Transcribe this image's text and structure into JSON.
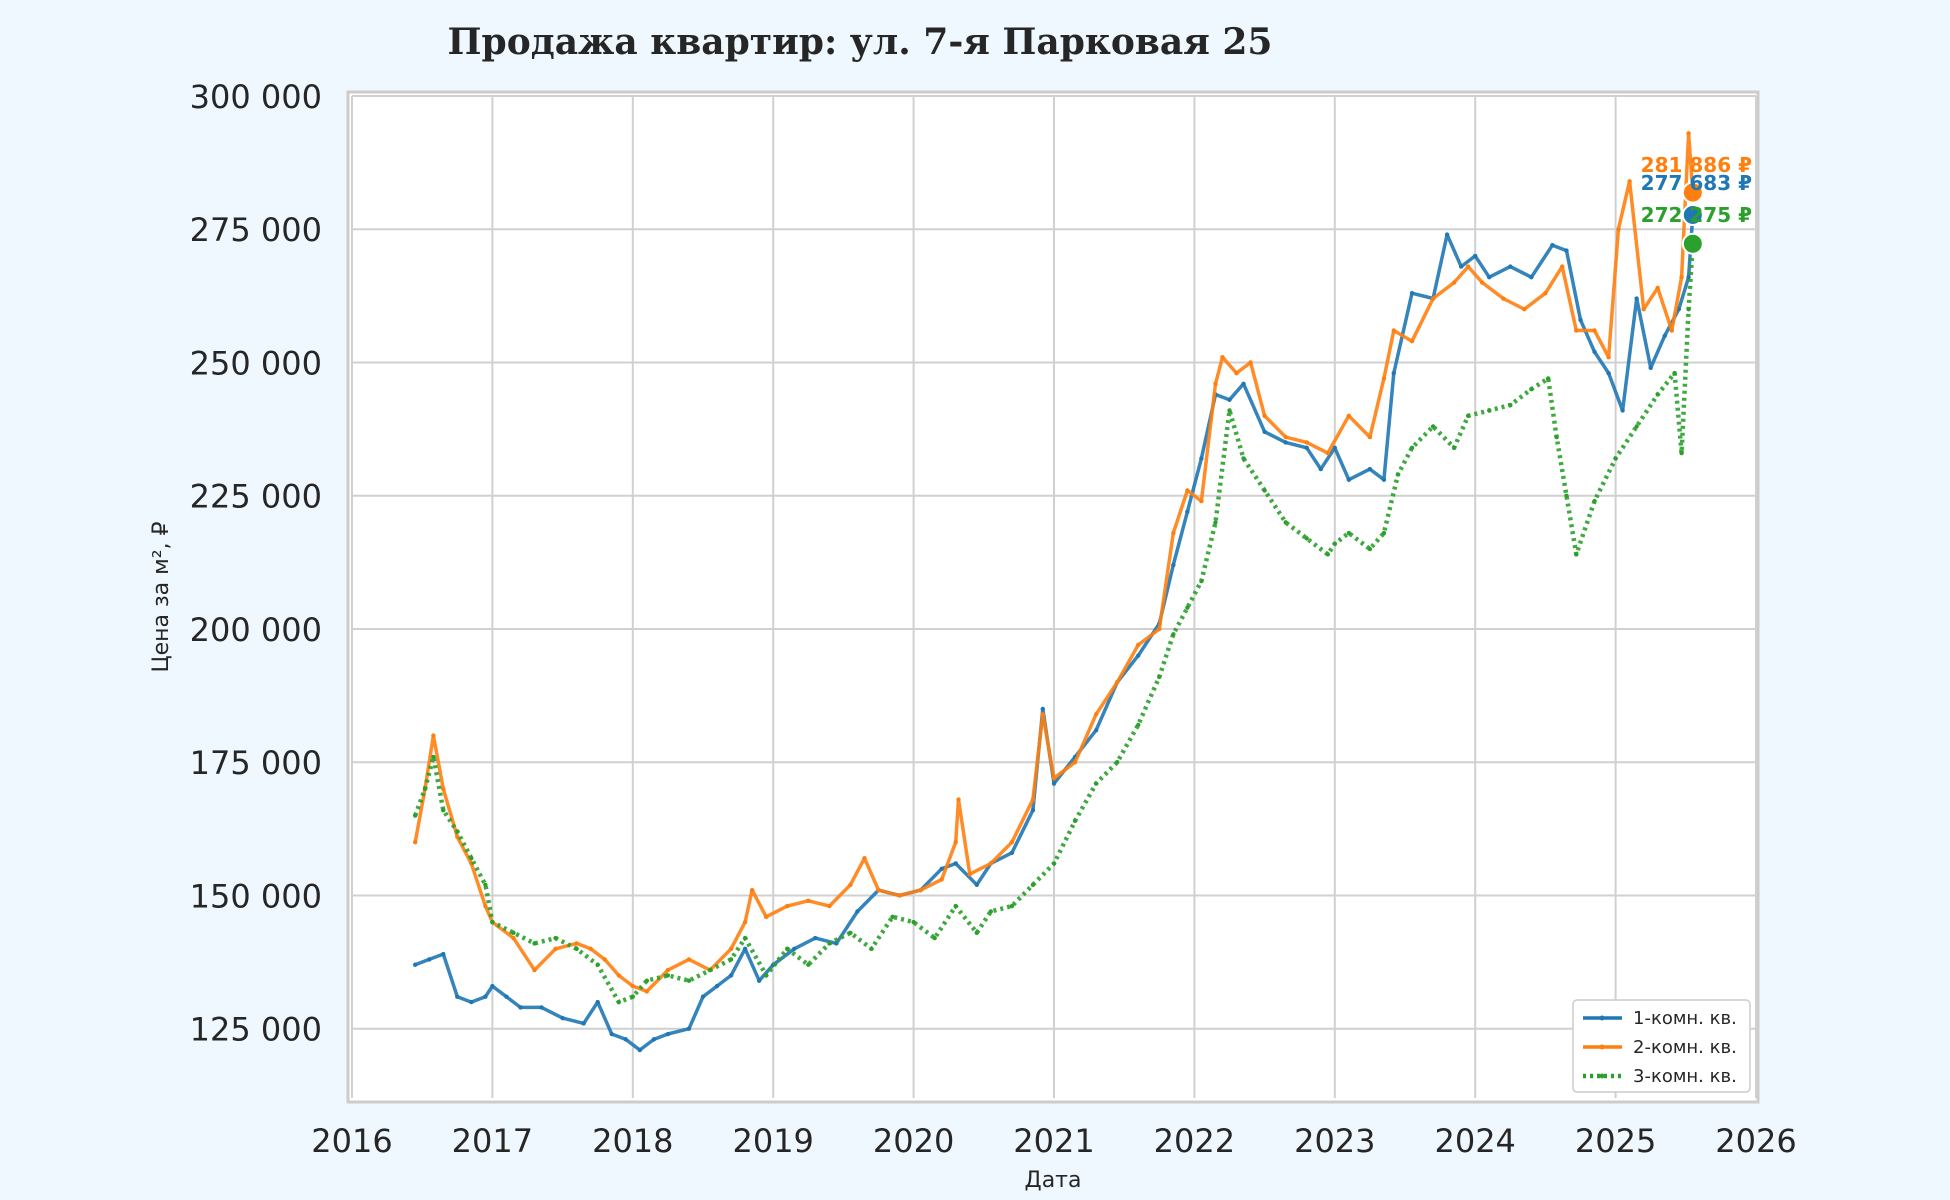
{
  "chart_data": {
    "type": "line",
    "title": "Продажа квартир: ул. 7-я Парковая 25",
    "xlabel": "Дата",
    "ylabel": "Цена за м², ₽",
    "xlim": [
      2016.0,
      2026.0
    ],
    "ylim": [
      112000,
      300000
    ],
    "x_ticks": [
      2016,
      2017,
      2018,
      2019,
      2020,
      2021,
      2022,
      2023,
      2024,
      2025,
      2026
    ],
    "x_tick_labels": [
      "2016",
      "2017",
      "2018",
      "2019",
      "2020",
      "2021",
      "2022",
      "2023",
      "2024",
      "2025",
      "2026"
    ],
    "y_ticks": [
      125000,
      150000,
      175000,
      200000,
      225000,
      250000,
      275000,
      300000
    ],
    "y_tick_labels": [
      "125 000",
      "150 000",
      "175 000",
      "200 000",
      "225 000",
      "250 000",
      "275 000",
      "300 000"
    ],
    "grid": true,
    "legend_position": "bottom-right",
    "series": [
      {
        "name": "1-комн. кв.",
        "color": "#1f77b4",
        "style": "solid",
        "x": [
          2016.45,
          2016.55,
          2016.65,
          2016.75,
          2016.85,
          2016.95,
          2017.0,
          2017.1,
          2017.2,
          2017.35,
          2017.5,
          2017.65,
          2017.75,
          2017.85,
          2017.95,
          2018.05,
          2018.15,
          2018.25,
          2018.4,
          2018.5,
          2018.6,
          2018.7,
          2018.8,
          2018.9,
          2019.0,
          2019.15,
          2019.3,
          2019.45,
          2019.6,
          2019.75,
          2019.9,
          2020.05,
          2020.2,
          2020.3,
          2020.45,
          2020.55,
          2020.7,
          2020.85,
          2020.92,
          2021.0,
          2021.15,
          2021.3,
          2021.45,
          2021.6,
          2021.75,
          2021.85,
          2021.95,
          2022.05,
          2022.15,
          2022.25,
          2022.35,
          2022.5,
          2022.65,
          2022.8,
          2022.9,
          2023.0,
          2023.1,
          2023.25,
          2023.35,
          2023.42,
          2023.55,
          2023.7,
          2023.8,
          2023.9,
          2024.0,
          2024.1,
          2024.25,
          2024.4,
          2024.55,
          2024.65,
          2024.75,
          2024.85,
          2024.95,
          2025.05,
          2025.15,
          2025.25,
          2025.35,
          2025.45,
          2025.52,
          2025.55
        ],
        "y": [
          137000,
          138000,
          139000,
          131000,
          130000,
          131000,
          133000,
          131000,
          129000,
          129000,
          127000,
          126000,
          130000,
          124000,
          123000,
          121000,
          123000,
          124000,
          125000,
          131000,
          133000,
          135000,
          140000,
          134000,
          137000,
          140000,
          142000,
          141000,
          147000,
          151000,
          150000,
          151000,
          155000,
          156000,
          152000,
          156000,
          158000,
          166000,
          185000,
          171000,
          176000,
          181000,
          190000,
          195000,
          201000,
          212000,
          222000,
          232000,
          244000,
          243000,
          246000,
          237000,
          235000,
          234000,
          230000,
          234000,
          228000,
          230000,
          228000,
          248000,
          263000,
          262000,
          274000,
          268000,
          270000,
          266000,
          268000,
          266000,
          272000,
          271000,
          258000,
          252000,
          248000,
          241000,
          262000,
          249000,
          255000,
          260000,
          266000,
          277683
        ]
      },
      {
        "name": "2-комн. кв.",
        "color": "#ff7f0e",
        "style": "solid",
        "x": [
          2016.45,
          2016.52,
          2016.58,
          2016.65,
          2016.75,
          2016.85,
          2016.95,
          2017.0,
          2017.15,
          2017.3,
          2017.45,
          2017.6,
          2017.7,
          2017.8,
          2017.9,
          2018.0,
          2018.1,
          2018.25,
          2018.4,
          2018.55,
          2018.7,
          2018.8,
          2018.85,
          2018.95,
          2019.1,
          2019.25,
          2019.4,
          2019.55,
          2019.65,
          2019.75,
          2019.9,
          2020.05,
          2020.2,
          2020.3,
          2020.32,
          2020.4,
          2020.55,
          2020.7,
          2020.85,
          2020.92,
          2021.0,
          2021.15,
          2021.3,
          2021.45,
          2021.6,
          2021.75,
          2021.85,
          2021.95,
          2022.05,
          2022.15,
          2022.2,
          2022.3,
          2022.4,
          2022.5,
          2022.65,
          2022.8,
          2022.95,
          2023.1,
          2023.25,
          2023.35,
          2023.42,
          2023.55,
          2023.7,
          2023.85,
          2023.95,
          2024.05,
          2024.2,
          2024.35,
          2024.5,
          2024.62,
          2024.72,
          2024.85,
          2024.95,
          2025.02,
          2025.1,
          2025.2,
          2025.3,
          2025.4,
          2025.47,
          2025.52,
          2025.55
        ],
        "y": [
          160000,
          170000,
          180000,
          170000,
          161000,
          156000,
          148000,
          145000,
          142000,
          136000,
          140000,
          141000,
          140000,
          138000,
          135000,
          133000,
          132000,
          136000,
          138000,
          136000,
          140000,
          145000,
          151000,
          146000,
          148000,
          149000,
          148000,
          152000,
          157000,
          151000,
          150000,
          151000,
          153000,
          160000,
          168000,
          154000,
          156000,
          160000,
          168000,
          184000,
          172000,
          175000,
          184000,
          190000,
          197000,
          200000,
          218000,
          226000,
          224000,
          246000,
          251000,
          248000,
          250000,
          240000,
          236000,
          235000,
          233000,
          240000,
          236000,
          247000,
          256000,
          254000,
          262000,
          265000,
          268000,
          265000,
          262000,
          260000,
          263000,
          268000,
          256000,
          256000,
          251000,
          275000,
          284000,
          260000,
          264000,
          256000,
          266000,
          293000,
          281886
        ]
      },
      {
        "name": "3-комн. кв.",
        "color": "#2ca02c",
        "style": "dotted",
        "x": [
          2016.45,
          2016.52,
          2016.58,
          2016.65,
          2016.75,
          2016.85,
          2016.95,
          2017.0,
          2017.15,
          2017.3,
          2017.45,
          2017.6,
          2017.75,
          2017.9,
          2018.0,
          2018.1,
          2018.25,
          2018.4,
          2018.55,
          2018.7,
          2018.8,
          2018.95,
          2019.1,
          2019.25,
          2019.4,
          2019.55,
          2019.7,
          2019.85,
          2020.0,
          2020.15,
          2020.3,
          2020.45,
          2020.55,
          2020.7,
          2020.85,
          2021.0,
          2021.15,
          2021.3,
          2021.45,
          2021.6,
          2021.75,
          2021.85,
          2021.95,
          2022.05,
          2022.15,
          2022.25,
          2022.35,
          2022.5,
          2022.65,
          2022.8,
          2022.95,
          2023.0,
          2023.1,
          2023.25,
          2023.35,
          2023.45,
          2023.55,
          2023.7,
          2023.85,
          2023.95,
          2024.1,
          2024.25,
          2024.4,
          2024.52,
          2024.58,
          2024.65,
          2024.72,
          2024.85,
          2025.0,
          2025.15,
          2025.3,
          2025.42,
          2025.47,
          2025.52,
          2025.55
        ],
        "y": [
          165000,
          170000,
          176000,
          166000,
          162000,
          157000,
          152000,
          145000,
          143000,
          141000,
          142000,
          140000,
          137000,
          130000,
          131000,
          134000,
          135000,
          134000,
          136000,
          138000,
          142000,
          135000,
          140000,
          137000,
          141000,
          143000,
          140000,
          146000,
          145000,
          142000,
          148000,
          143000,
          147000,
          148000,
          152000,
          156000,
          164000,
          171000,
          175000,
          182000,
          191000,
          199000,
          204000,
          209000,
          220000,
          241000,
          232000,
          226000,
          220000,
          217000,
          214000,
          216000,
          218000,
          215000,
          218000,
          229000,
          234000,
          238000,
          234000,
          240000,
          241000,
          242000,
          245000,
          247000,
          236000,
          225000,
          214000,
          224000,
          232000,
          238000,
          244000,
          248000,
          233000,
          260000,
          272275
        ]
      }
    ],
    "end_labels": [
      {
        "series": "2-комн. кв.",
        "text": "281 886 ₽",
        "value": 281886,
        "color": "#ff7f0e"
      },
      {
        "series": "1-комн. кв.",
        "text": "277 683 ₽",
        "value": 277683,
        "color": "#1f77b4"
      },
      {
        "series": "3-комн. кв.",
        "text": "272 275 ₽",
        "value": 272275,
        "color": "#2ca02c"
      }
    ]
  }
}
